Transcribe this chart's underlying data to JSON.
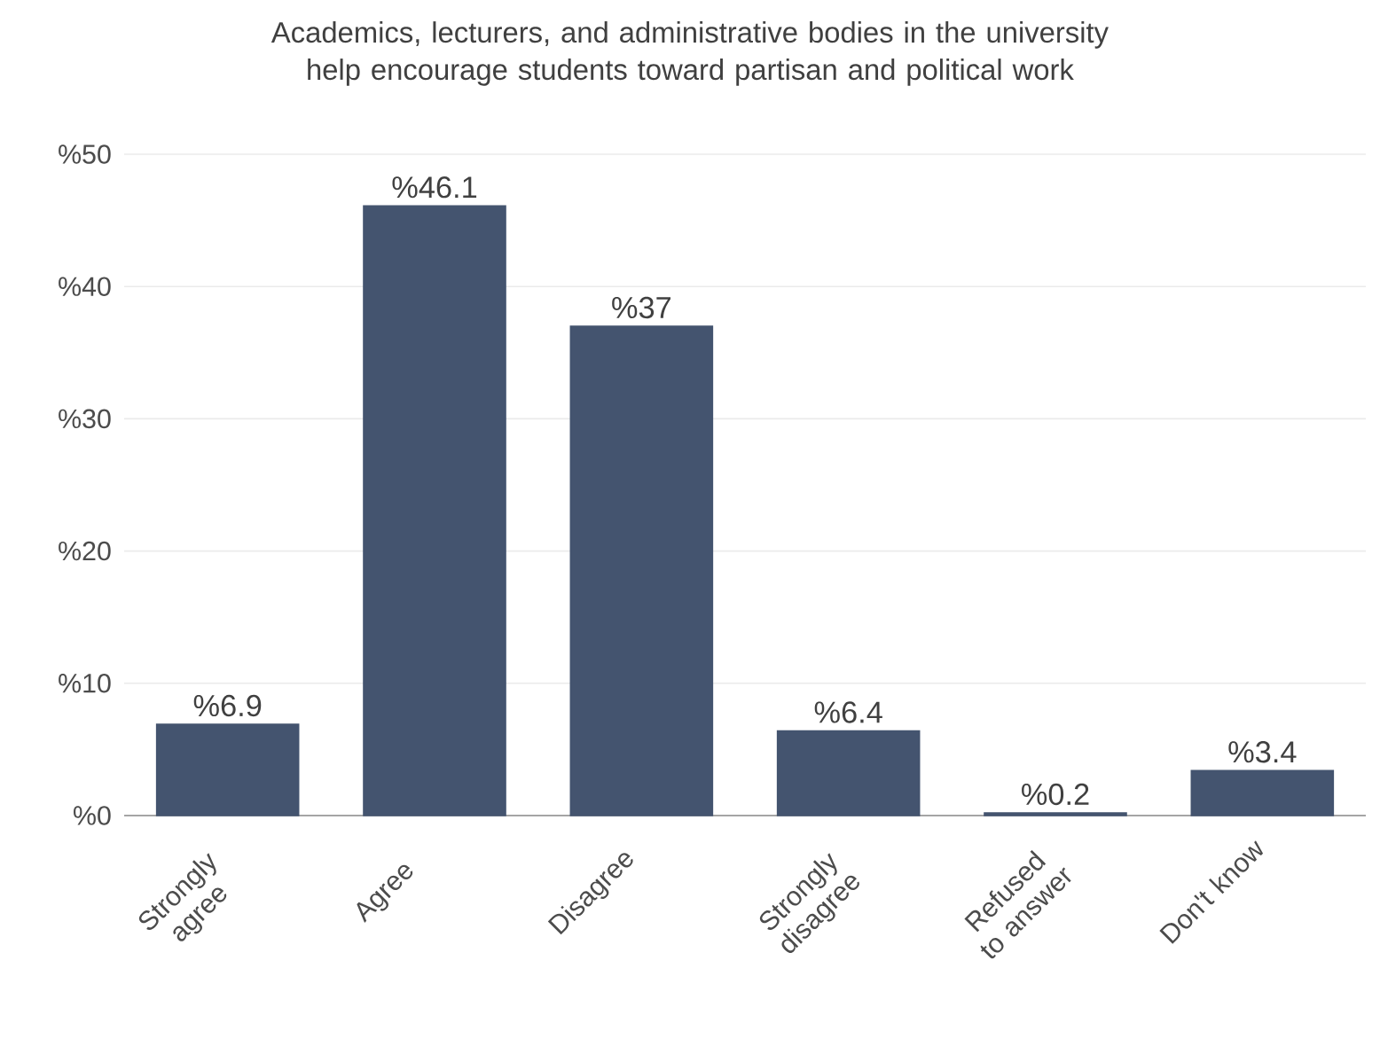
{
  "chart_data": {
    "type": "bar",
    "title": "Academics, lecturers, and administrative bodies in the university help encourage students toward partisan and political work",
    "categories": [
      "Strongly agree",
      "Agree",
      "Disagree",
      "Strongly disagree",
      "Refused to answer",
      "Don't know"
    ],
    "values": [
      6.9,
      46.1,
      37,
      6.4,
      0.2,
      3.4
    ],
    "value_labels": [
      "%6.9",
      "%46.1",
      "%37",
      "%6.4",
      "%0.2",
      "%3.4"
    ],
    "color": "#44546f",
    "ylim": [
      0,
      50
    ],
    "yticks": [
      {
        "value": 0,
        "label": "%0"
      },
      {
        "value": 10,
        "label": "%10"
      },
      {
        "value": 20,
        "label": "%20"
      },
      {
        "value": 30,
        "label": "%30"
      },
      {
        "value": 40,
        "label": "%40"
      },
      {
        "value": 50,
        "label": "%50"
      }
    ],
    "grid": "y"
  }
}
